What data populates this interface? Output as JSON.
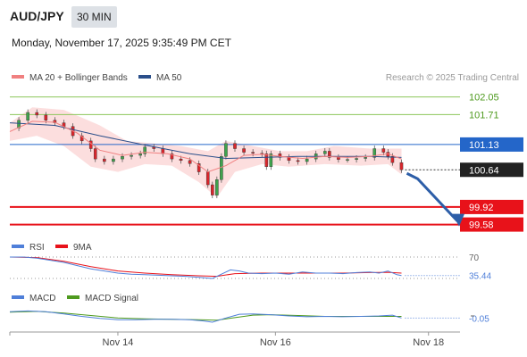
{
  "header": {
    "symbol": "AUD/JPY",
    "timeframe": "30 MIN",
    "datetime": "Monday, November 17, 2025 9:35:49 PM CET"
  },
  "chart_data": [
    {
      "type": "line",
      "panel": "price",
      "legend": [
        {
          "name": "MA 20 + Bollinger Bands",
          "color": "#f08080"
        },
        {
          "name": "MA 50",
          "color": "#2b4f8a"
        }
      ],
      "source": "Research © 2025 Trading Central",
      "ylim": [
        99.4,
        102.2
      ],
      "xlim": [
        0,
        100
      ],
      "levels": [
        {
          "label": "102.05",
          "value": 102.05,
          "kind": "resistance",
          "color": "#8cc65a"
        },
        {
          "label": "101.71",
          "value": 101.71,
          "kind": "resistance",
          "color": "#8cc65a"
        },
        {
          "label": "101.13",
          "value": 101.13,
          "kind": "pivot",
          "color": "#2466c9"
        },
        {
          "label": "99.92",
          "value": 99.92,
          "kind": "support",
          "color": "#e8121a"
        },
        {
          "label": "99.58",
          "value": 99.58,
          "kind": "support",
          "color": "#e8121a"
        }
      ],
      "current_price": {
        "label": "100.64",
        "value": 100.64
      },
      "projection": {
        "from": 100.64,
        "to": 99.58
      },
      "price_points": [
        [
          0,
          101.45
        ],
        [
          2,
          101.6
        ],
        [
          4,
          101.75
        ],
        [
          6,
          101.7
        ],
        [
          8,
          101.6
        ],
        [
          10,
          101.55
        ],
        [
          12,
          101.48
        ],
        [
          14,
          101.3
        ],
        [
          16,
          101.2
        ],
        [
          18,
          101.05
        ],
        [
          19,
          100.85
        ],
        [
          21,
          100.8
        ],
        [
          23,
          100.85
        ],
        [
          25,
          100.9
        ],
        [
          27,
          100.92
        ],
        [
          29,
          100.95
        ],
        [
          30,
          101.08
        ],
        [
          32,
          101.05
        ],
        [
          34,
          100.95
        ],
        [
          36,
          100.85
        ],
        [
          38,
          100.82
        ],
        [
          40,
          100.76
        ],
        [
          42,
          100.6
        ],
        [
          44,
          100.35
        ],
        [
          45,
          100.15
        ],
        [
          46,
          100.45
        ],
        [
          47,
          100.9
        ],
        [
          48,
          101.15
        ],
        [
          50,
          101.05
        ],
        [
          52,
          100.98
        ],
        [
          54,
          100.96
        ],
        [
          56,
          100.95
        ],
        [
          57,
          100.7
        ],
        [
          58,
          100.95
        ],
        [
          60,
          100.88
        ],
        [
          62,
          100.82
        ],
        [
          64,
          100.8
        ],
        [
          66,
          100.85
        ],
        [
          68,
          100.95
        ],
        [
          70,
          101.0
        ],
        [
          71,
          100.88
        ],
        [
          73,
          100.84
        ],
        [
          75,
          100.84
        ],
        [
          77,
          100.86
        ],
        [
          79,
          100.88
        ],
        [
          81,
          101.05
        ],
        [
          83,
          100.98
        ],
        [
          84,
          100.9
        ],
        [
          85,
          100.78
        ],
        [
          87,
          100.64
        ]
      ],
      "ma20": [
        [
          0,
          101.38
        ],
        [
          5,
          101.58
        ],
        [
          10,
          101.56
        ],
        [
          15,
          101.35
        ],
        [
          20,
          101.02
        ],
        [
          25,
          100.92
        ],
        [
          30,
          100.98
        ],
        [
          35,
          100.95
        ],
        [
          40,
          100.85
        ],
        [
          44,
          100.6
        ],
        [
          48,
          100.72
        ],
        [
          52,
          100.92
        ],
        [
          56,
          100.94
        ],
        [
          60,
          100.9
        ],
        [
          65,
          100.86
        ],
        [
          70,
          100.9
        ],
        [
          75,
          100.88
        ],
        [
          80,
          100.9
        ],
        [
          84,
          100.95
        ],
        [
          87,
          100.85
        ]
      ],
      "ma50": [
        [
          0,
          101.55
        ],
        [
          10,
          101.5
        ],
        [
          20,
          101.3
        ],
        [
          30,
          101.12
        ],
        [
          40,
          100.95
        ],
        [
          48,
          100.86
        ],
        [
          56,
          100.88
        ],
        [
          64,
          100.9
        ],
        [
          72,
          100.9
        ],
        [
          80,
          100.9
        ],
        [
          87,
          100.88
        ]
      ],
      "bollinger_upper": [
        [
          0,
          101.55
        ],
        [
          5,
          101.85
        ],
        [
          12,
          101.8
        ],
        [
          20,
          101.5
        ],
        [
          26,
          101.2
        ],
        [
          32,
          101.15
        ],
        [
          38,
          101.1
        ],
        [
          44,
          101.0
        ],
        [
          48,
          101.2
        ],
        [
          54,
          101.1
        ],
        [
          60,
          101.0
        ],
        [
          66,
          101.0
        ],
        [
          72,
          101.1
        ],
        [
          80,
          101.05
        ],
        [
          87,
          101.05
        ]
      ],
      "bollinger_lower": [
        [
          0,
          101.2
        ],
        [
          6,
          101.3
        ],
        [
          12,
          101.1
        ],
        [
          18,
          100.7
        ],
        [
          24,
          100.6
        ],
        [
          30,
          100.75
        ],
        [
          36,
          100.72
        ],
        [
          42,
          100.4
        ],
        [
          46,
          100.1
        ],
        [
          50,
          100.6
        ],
        [
          56,
          100.75
        ],
        [
          62,
          100.7
        ],
        [
          70,
          100.75
        ],
        [
          78,
          100.72
        ],
        [
          84,
          100.75
        ],
        [
          87,
          100.55
        ]
      ]
    },
    {
      "type": "line",
      "panel": "rsi",
      "legend": [
        {
          "name": "RSI",
          "color": "#4f7fd9"
        },
        {
          "name": "9MA",
          "color": "#e8121a"
        }
      ],
      "ylim": [
        20,
        80
      ],
      "level_label": "70",
      "level_value": 70,
      "current_label": "35.44",
      "rsi": [
        [
          0,
          70
        ],
        [
          3,
          70
        ],
        [
          6,
          68
        ],
        [
          9,
          64
        ],
        [
          12,
          60
        ],
        [
          15,
          54
        ],
        [
          18,
          48
        ],
        [
          21,
          44
        ],
        [
          24,
          40
        ],
        [
          27,
          38
        ],
        [
          30,
          37
        ],
        [
          33,
          36
        ],
        [
          36,
          35
        ],
        [
          39,
          34
        ],
        [
          42,
          32
        ],
        [
          45,
          30
        ],
        [
          47,
          38
        ],
        [
          49,
          46
        ],
        [
          51,
          44
        ],
        [
          53,
          40
        ],
        [
          56,
          39
        ],
        [
          59,
          40
        ],
        [
          62,
          38
        ],
        [
          65,
          42
        ],
        [
          68,
          40
        ],
        [
          71,
          40
        ],
        [
          74,
          39
        ],
        [
          77,
          41
        ],
        [
          80,
          42
        ],
        [
          82,
          40
        ],
        [
          84,
          44
        ],
        [
          86,
          37
        ],
        [
          87,
          35.44
        ]
      ],
      "ma9": [
        [
          0,
          70
        ],
        [
          6,
          69
        ],
        [
          12,
          62
        ],
        [
          18,
          52
        ],
        [
          24,
          44
        ],
        [
          30,
          40
        ],
        [
          36,
          37
        ],
        [
          42,
          35
        ],
        [
          46,
          34
        ],
        [
          50,
          39
        ],
        [
          56,
          40
        ],
        [
          62,
          40
        ],
        [
          68,
          40
        ],
        [
          74,
          40
        ],
        [
          80,
          41
        ],
        [
          84,
          41.5
        ],
        [
          87,
          40
        ]
      ]
    },
    {
      "type": "line",
      "panel": "macd",
      "legend": [
        {
          "name": "MACD",
          "color": "#4f7fd9"
        },
        {
          "name": "MACD Signal",
          "color": "#4e9a1e"
        }
      ],
      "ylim": [
        -0.3,
        0.3
      ],
      "level_label": "",
      "current_label": "-0.05",
      "macd": [
        [
          0,
          0.1
        ],
        [
          4,
          0.12
        ],
        [
          8,
          0.1
        ],
        [
          12,
          0.05
        ],
        [
          16,
          -0.01
        ],
        [
          20,
          -0.06
        ],
        [
          24,
          -0.09
        ],
        [
          28,
          -0.09
        ],
        [
          32,
          -0.08
        ],
        [
          36,
          -0.08
        ],
        [
          40,
          -0.09
        ],
        [
          43,
          -0.12
        ],
        [
          45,
          -0.15
        ],
        [
          48,
          -0.05
        ],
        [
          51,
          0.04
        ],
        [
          54,
          0.05
        ],
        [
          58,
          0.03
        ],
        [
          62,
          0.0
        ],
        [
          66,
          -0.02
        ],
        [
          70,
          -0.01
        ],
        [
          74,
          -0.02
        ],
        [
          78,
          -0.01
        ],
        [
          82,
          0.0
        ],
        [
          85,
          0.02
        ],
        [
          87,
          -0.05
        ]
      ],
      "signal": [
        [
          0,
          0.09
        ],
        [
          6,
          0.11
        ],
        [
          12,
          0.07
        ],
        [
          18,
          0.01
        ],
        [
          24,
          -0.05
        ],
        [
          30,
          -0.07
        ],
        [
          36,
          -0.08
        ],
        [
          42,
          -0.09
        ],
        [
          46,
          -0.1
        ],
        [
          50,
          -0.04
        ],
        [
          54,
          0.02
        ],
        [
          58,
          0.03
        ],
        [
          64,
          0.01
        ],
        [
          70,
          -0.01
        ],
        [
          76,
          -0.01
        ],
        [
          82,
          -0.01
        ],
        [
          87,
          -0.01
        ]
      ]
    }
  ],
  "x_axis": {
    "ticks": [
      {
        "label": "Nov 14",
        "x": 24
      },
      {
        "label": "Nov 16",
        "x": 59
      },
      {
        "label": "Nov 18",
        "x": 93
      }
    ]
  }
}
